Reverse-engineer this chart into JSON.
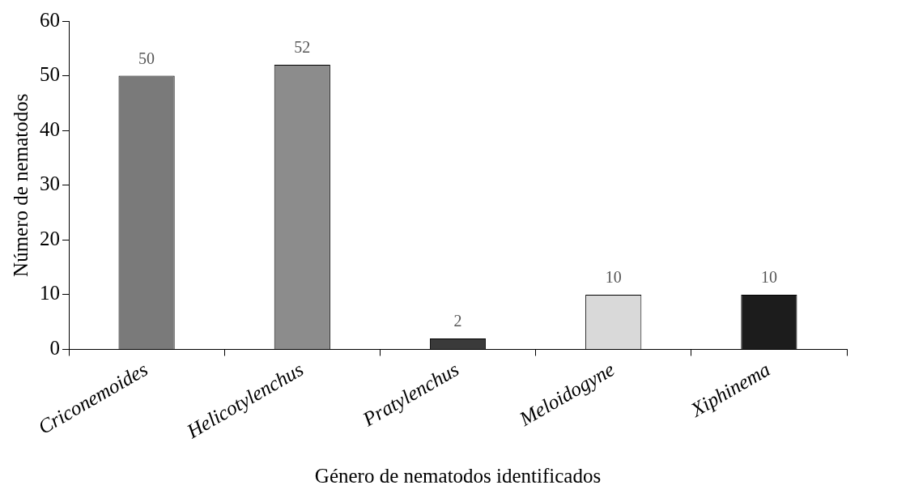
{
  "chart_data": {
    "type": "bar",
    "xlabel": "Género de nematodos identificados",
    "ylabel": "Número de nematodos",
    "categories": [
      "Criconemoides",
      "Helicotylenchus",
      "Pratylenchus",
      "Meloidogyne",
      "Xiphinema"
    ],
    "values": [
      50,
      52,
      2,
      10,
      10
    ],
    "colors": [
      "#7a7a7a",
      "#8c8c8c",
      "#3a3a3a",
      "#d9d9d9",
      "#1c1c1c"
    ],
    "ylim": [
      0,
      60
    ],
    "yticks": [
      0,
      10,
      20,
      30,
      40,
      50,
      60
    ],
    "grid": false,
    "legend": false,
    "data_labels": true
  }
}
